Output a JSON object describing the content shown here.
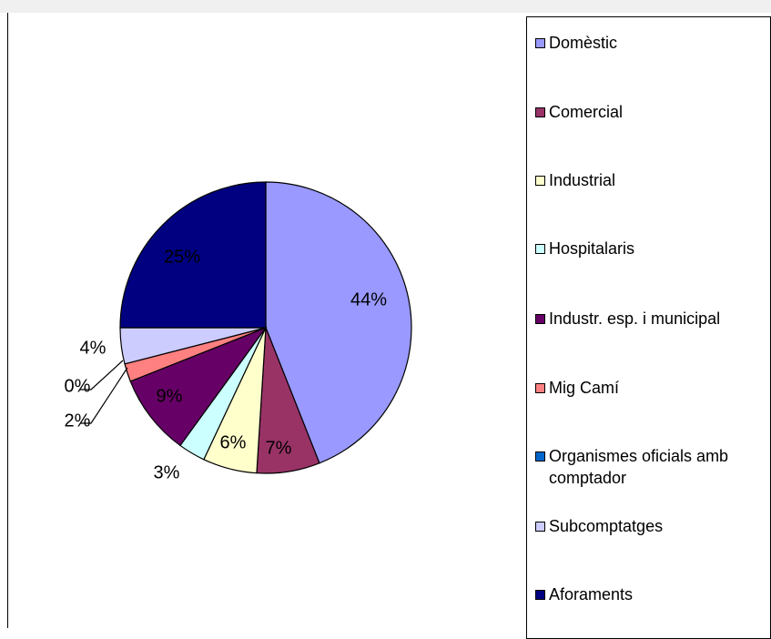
{
  "chart_data": {
    "type": "pie",
    "categories": [
      "Domèstic",
      "Comercial",
      "Industrial",
      "Hospitalaris",
      "Industr. esp. i municipal",
      "Mig Camí",
      "Organismes oficials amb comptador",
      "Subcomptatges",
      "Aforaments"
    ],
    "values": [
      44,
      7,
      6,
      3,
      9,
      2,
      0,
      4,
      25
    ],
    "value_labels": [
      "44%",
      "7%",
      "6%",
      "3%",
      "9%",
      "2%",
      "0%",
      "4%",
      "25%"
    ],
    "colors": [
      "#9999ff",
      "#993366",
      "#ffffcc",
      "#ccffff",
      "#660066",
      "#ff8080",
      "#0066cc",
      "#ccccff",
      "#000080"
    ],
    "legend": "right"
  }
}
